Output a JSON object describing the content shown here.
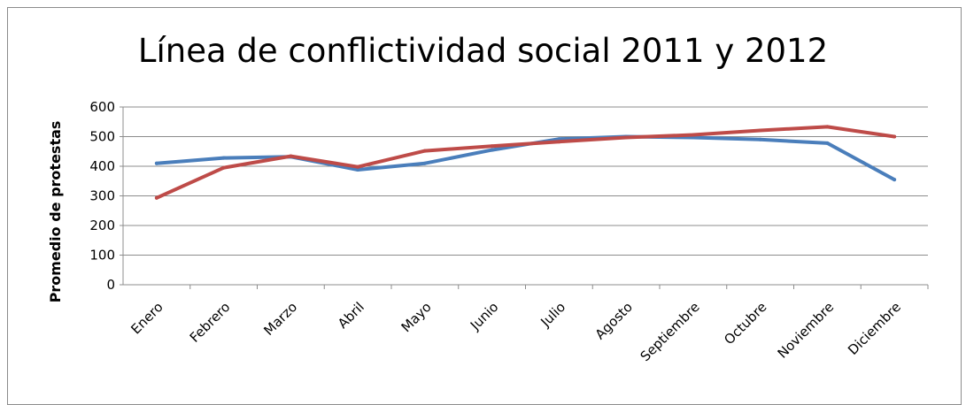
{
  "chart_data": {
    "type": "line",
    "title": "Línea de conflictividad social 2011 y 2012",
    "xlabel": "",
    "ylabel": "Promedio de protestas",
    "categories": [
      "Enero",
      "Febrero",
      "Marzo",
      "Abril",
      "Mayo",
      "Junio",
      "Julio",
      "Agosto",
      "Septiembre",
      "Octubre",
      "Noviembre",
      "Diciembre"
    ],
    "ylim": [
      0,
      600
    ],
    "yticks": [
      "0",
      "100",
      "200",
      "300",
      "400",
      "500",
      "600"
    ],
    "grid": true,
    "series": [
      {
        "color": "#4a7ebb",
        "values": [
          410,
          428,
          432,
          388,
          410,
          455,
          492,
          500,
          497,
          490,
          478,
          355
        ]
      },
      {
        "color": "#be4b48",
        "values": [
          293,
          395,
          434,
          398,
          452,
          468,
          483,
          497,
          506,
          521,
          533,
          500
        ]
      }
    ]
  }
}
